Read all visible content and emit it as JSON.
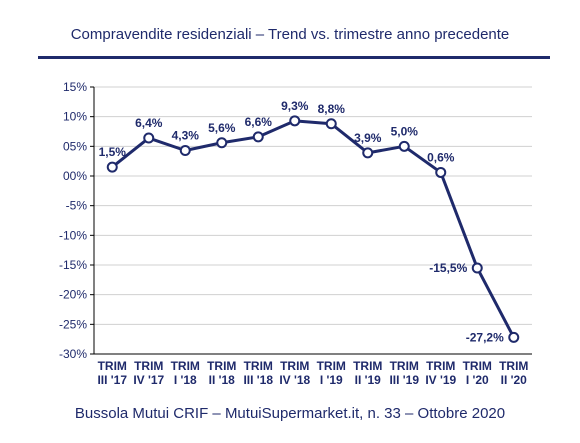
{
  "header": {
    "title": "Compravendite residenziali – Trend vs. trimestre anno precedente"
  },
  "footer": {
    "source": "Bussola Mutui CRIF – MutuiSupermarket.it, n. 33 – Ottobre 2020"
  },
  "colors": {
    "line": "#1f2a6b",
    "grid": "#d0d0d0",
    "marker_fill": "#ffffff"
  },
  "chart_data": {
    "type": "line",
    "title": "Compravendite residenziali – Trend vs. trimestre anno precedente",
    "xlabel": "",
    "ylabel": "",
    "ylim": [
      -30,
      15
    ],
    "yticks": [
      15,
      10,
      5,
      0,
      -5,
      -10,
      -15,
      -20,
      -25,
      -30
    ],
    "ytick_labels": [
      "15%",
      "10%",
      "05%",
      "00%",
      "-5%",
      "-10%",
      "-15%",
      "-20%",
      "-25%",
      "-30%"
    ],
    "grid": true,
    "legend": "none",
    "categories": [
      [
        "TRIM",
        "III '17"
      ],
      [
        "TRIM",
        "IV '17"
      ],
      [
        "TRIM",
        "I '18"
      ],
      [
        "TRIM",
        "II '18"
      ],
      [
        "TRIM",
        "III '18"
      ],
      [
        "TRIM",
        "IV '18"
      ],
      [
        "TRIM",
        "I '19"
      ],
      [
        "TRIM",
        "II '19"
      ],
      [
        "TRIM",
        "III '19"
      ],
      [
        "TRIM",
        "IV '19"
      ],
      [
        "TRIM",
        "I '20"
      ],
      [
        "TRIM",
        "II '20"
      ]
    ],
    "values": [
      1.5,
      6.4,
      4.3,
      5.6,
      6.6,
      9.3,
      8.8,
      3.9,
      5.0,
      0.6,
      -15.5,
      -27.2
    ],
    "data_labels": [
      "1,5%",
      "6,4%",
      "4,3%",
      "5,6%",
      "6,6%",
      "9,3%",
      "8,8%",
      "3,9%",
      "5,0%",
      "0,6%",
      "-15,5%",
      "-27,2%"
    ]
  }
}
